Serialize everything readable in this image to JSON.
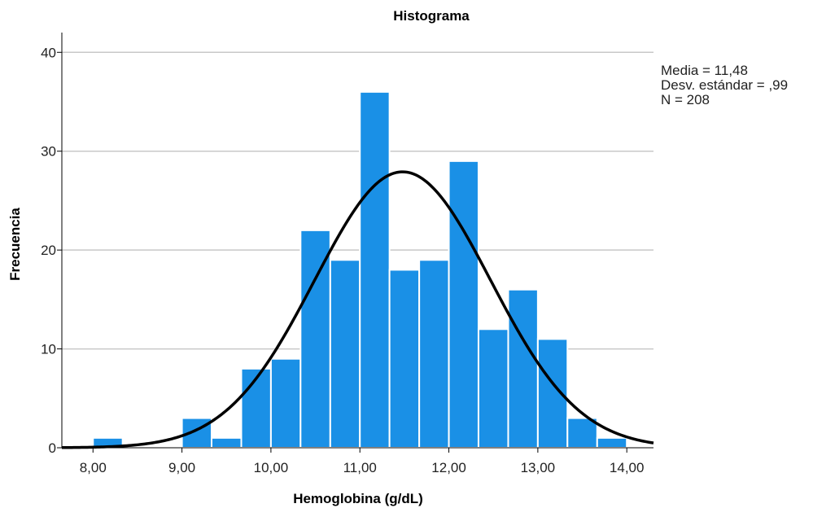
{
  "chart_data": {
    "type": "bar",
    "title": "Histograma",
    "xlabel": "Hemoglobina (g/dL)",
    "ylabel": "Frecuencia",
    "xlim": [
      7.65,
      14.3
    ],
    "ylim": [
      0,
      42
    ],
    "x_ticks": [
      {
        "value": 8,
        "label": "8,00"
      },
      {
        "value": 9,
        "label": "9,00"
      },
      {
        "value": 10,
        "label": "10,00"
      },
      {
        "value": 11,
        "label": "11,00"
      },
      {
        "value": 12,
        "label": "12,00"
      },
      {
        "value": 13,
        "label": "13,00"
      },
      {
        "value": 14,
        "label": "14,00"
      }
    ],
    "y_ticks": [
      {
        "value": 0,
        "label": "0"
      },
      {
        "value": 10,
        "label": "10"
      },
      {
        "value": 20,
        "label": "20"
      },
      {
        "value": 30,
        "label": "30"
      },
      {
        "value": 40,
        "label": "40"
      }
    ],
    "bins": [
      {
        "start": 8.0,
        "end": 8.333,
        "count": 1
      },
      {
        "start": 8.333,
        "end": 8.667,
        "count": 0
      },
      {
        "start": 8.667,
        "end": 9.0,
        "count": 0
      },
      {
        "start": 9.0,
        "end": 9.333,
        "count": 3
      },
      {
        "start": 9.333,
        "end": 9.667,
        "count": 1
      },
      {
        "start": 9.667,
        "end": 10.0,
        "count": 8
      },
      {
        "start": 10.0,
        "end": 10.333,
        "count": 9
      },
      {
        "start": 10.333,
        "end": 10.667,
        "count": 22
      },
      {
        "start": 10.667,
        "end": 11.0,
        "count": 19
      },
      {
        "start": 11.0,
        "end": 11.333,
        "count": 36
      },
      {
        "start": 11.333,
        "end": 11.667,
        "count": 18
      },
      {
        "start": 11.667,
        "end": 12.0,
        "count": 19
      },
      {
        "start": 12.0,
        "end": 12.333,
        "count": 29
      },
      {
        "start": 12.333,
        "end": 12.667,
        "count": 12
      },
      {
        "start": 12.667,
        "end": 13.0,
        "count": 16
      },
      {
        "start": 13.0,
        "end": 13.333,
        "count": 11
      },
      {
        "start": 13.333,
        "end": 13.667,
        "count": 3
      },
      {
        "start": 13.667,
        "end": 14.0,
        "count": 1
      }
    ],
    "normal_curve": {
      "mean": 11.48,
      "sd": 0.99,
      "n": 208
    },
    "stats_lines": [
      "Media = 11,48",
      "Desv. estándar = ,99",
      "N = 208"
    ],
    "grid": true,
    "bar_color": "#1a90e6",
    "curve_color": "#000000",
    "grid_color": "#c8c8c8"
  }
}
